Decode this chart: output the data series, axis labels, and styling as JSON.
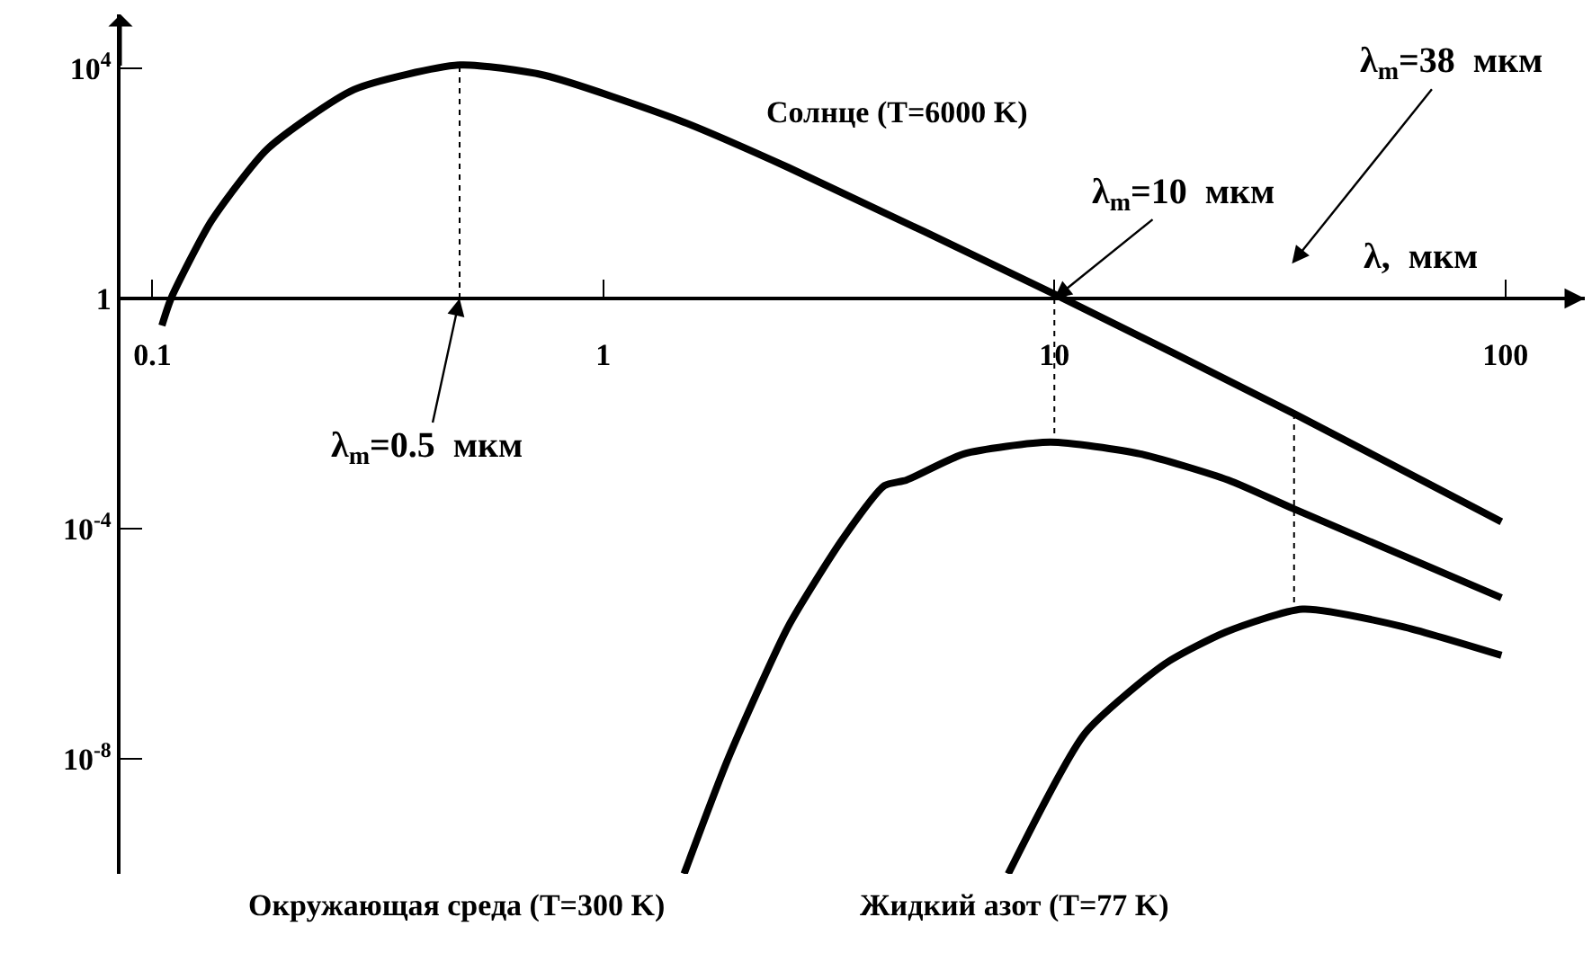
{
  "chart_data": {
    "type": "line",
    "xlim": [
      0.085,
      150
    ],
    "ylim": [
      1e-10,
      87000
    ],
    "xticks": [
      0.1,
      1,
      10,
      100
    ],
    "yticks": [
      {
        "value": 1e-08,
        "label": "10$^{-8}$"
      },
      {
        "value": 0.0001,
        "label": "10$^{-4}$"
      },
      1,
      {
        "value": 10000,
        "label": "10$^{4}$"
      }
    ],
    "log": "xy",
    "marker": "none",
    "xlabel": "λ,  мкм",
    "series": [
      {
        "color": "#000000",
        "line_style": "solid",
        "x": [
          0.105,
          0.11,
          0.135,
          0.18,
          0.28,
          0.48,
          0.74,
          1.47,
          2.57,
          10,
          34,
          98
        ],
        "values": [
          0.34,
          1,
          22,
          400,
          4300,
          11500,
          7600,
          1260,
          190,
          1.2,
          0.01,
          0.000132
        ]
      },
      {
        "color": "#000000",
        "line_style": "solid",
        "x": [
          1.51,
          1.89,
          2.57,
          3.4,
          4.2,
          4.7,
          6.3,
          9.8,
          15.5,
          24.3,
          34,
          98
        ],
        "values": [
          1e-10,
          1e-08,
          2e-06,
          6.8e-05,
          0.00056,
          0.0007,
          0.002,
          0.0032,
          0.002,
          0.0007,
          0.00022,
          6.3e-06
        ]
      },
      {
        "color": "#000000",
        "line_style": "solid",
        "x": [
          7.9,
          11.7,
          17.6,
          24,
          35.5,
          59,
          98
        ],
        "values": [
          1e-10,
          2.8e-08,
          4.5e-07,
          1.6e-06,
          4e-06,
          2e-06,
          6.3e-07
        ]
      },
      {
        "color": "#000000",
        "line_style": "dotted",
        "x": [
          0.48,
          0.48
        ],
        "values": [
          1,
          11500
        ]
      },
      {
        "color": "#000000",
        "line_style": "dotted",
        "x": [
          10,
          10
        ],
        "values": [
          1,
          0.0032
        ]
      },
      {
        "color": "#000000",
        "line_style": "dotted",
        "x": [
          34,
          34
        ],
        "values": [
          0.01,
          4e-06
        ]
      }
    ],
    "annotations": [
      {
        "text": "λ$_{m}$=0.5  мкм",
        "x": 0.48,
        "y": 1
      },
      {
        "text": "λ$_{m}$=10  мкм",
        "x": 10,
        "y": 1
      },
      "λ$_{m}$=38  мкм",
      "Солнце (T=6000 K)",
      "Окружающая среда (T=300 K)",
      "Жидкий азот (T=77 K)"
    ]
  }
}
